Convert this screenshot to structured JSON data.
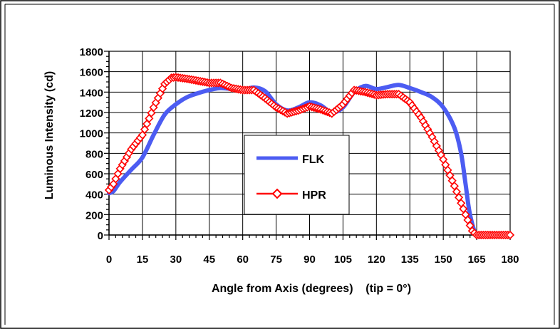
{
  "chart_data": {
    "type": "line",
    "title": "",
    "xlabel": "Angle from Axis (degrees)    (tip = 0°)",
    "ylabel": "Luminous Intensity (cd)",
    "xlim": [
      0,
      180
    ],
    "ylim": [
      0,
      1800
    ],
    "x_ticks": [
      "0",
      "15",
      "30",
      "45",
      "60",
      "75",
      "90",
      "105",
      "120",
      "135",
      "150",
      "165",
      "180"
    ],
    "y_ticks": [
      "0",
      "200",
      "400",
      "600",
      "800",
      "1000",
      "1200",
      "1400",
      "1600",
      "1800"
    ],
    "grid": true,
    "legend_position": "center",
    "series": [
      {
        "name": "FLK",
        "color": "#4C5CF2",
        "marker": "none",
        "x": [
          0,
          2,
          5,
          10,
          15,
          20,
          25,
          30,
          35,
          40,
          45,
          50,
          55,
          60,
          65,
          70,
          75,
          80,
          85,
          90,
          95,
          100,
          105,
          110,
          115,
          120,
          125,
          130,
          135,
          140,
          145,
          150,
          155,
          158,
          160,
          162,
          165,
          170,
          175,
          180
        ],
        "y": [
          410,
          430,
          520,
          640,
          760,
          980,
          1180,
          1280,
          1350,
          1390,
          1420,
          1440,
          1430,
          1420,
          1445,
          1410,
          1280,
          1220,
          1250,
          1300,
          1270,
          1200,
          1250,
          1400,
          1460,
          1430,
          1450,
          1470,
          1440,
          1400,
          1350,
          1250,
          1050,
          800,
          500,
          200,
          0,
          0,
          0,
          0
        ]
      },
      {
        "name": "HPR",
        "color": "#FF0000",
        "marker": "diamond",
        "x": [
          0,
          2,
          5,
          10,
          15,
          20,
          25,
          28,
          30,
          35,
          40,
          45,
          50,
          55,
          60,
          65,
          70,
          75,
          80,
          85,
          90,
          95,
          100,
          105,
          110,
          115,
          120,
          125,
          130,
          135,
          140,
          145,
          150,
          155,
          160,
          163,
          165,
          170,
          175,
          180
        ],
        "y": [
          440,
          500,
          650,
          840,
          980,
          1250,
          1480,
          1540,
          1545,
          1530,
          1510,
          1490,
          1490,
          1440,
          1420,
          1420,
          1340,
          1250,
          1190,
          1220,
          1260,
          1230,
          1190,
          1280,
          1420,
          1400,
          1370,
          1380,
          1380,
          1300,
          1150,
          960,
          740,
          480,
          200,
          40,
          0,
          0,
          0,
          0
        ]
      }
    ]
  }
}
